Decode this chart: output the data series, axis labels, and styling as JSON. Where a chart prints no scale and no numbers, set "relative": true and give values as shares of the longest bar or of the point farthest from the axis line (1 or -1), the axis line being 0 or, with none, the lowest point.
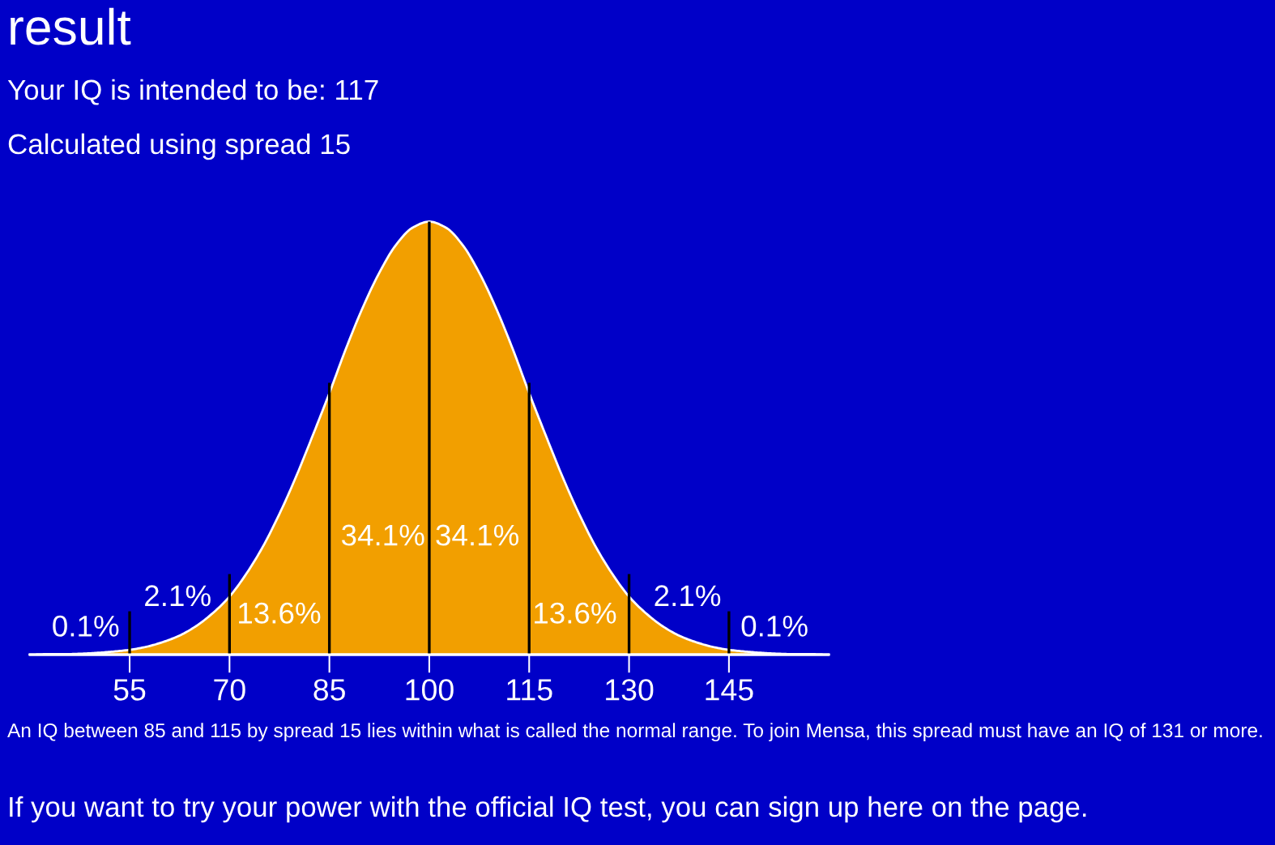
{
  "chart_data": {
    "type": "area",
    "title": "result",
    "subtitle": "Your IQ is intended to be: 117",
    "relative": true,
    "tick_labels": "x",
    "x": [
      40,
      42.5,
      45,
      47.5,
      50,
      52.5,
      55,
      57.5,
      60,
      62.5,
      65,
      67.5,
      70,
      72.5,
      75,
      77.5,
      80,
      82.5,
      85,
      87.5,
      90,
      92.5,
      95,
      97.5,
      100,
      102.5,
      105,
      107.5,
      110,
      112.5,
      115,
      117.5,
      120,
      122.5,
      125,
      127.5,
      130,
      132.5,
      135,
      137.5,
      140,
      142.5,
      145,
      147.5,
      150,
      152.5,
      155,
      157.5,
      160
    ],
    "series": [
      {
        "color": "#f29f00",
        "values": [
          0.0,
          0.001,
          0.001,
          0.002,
          0.004,
          0.007,
          0.011,
          0.018,
          0.029,
          0.044,
          0.066,
          0.096,
          0.134,
          0.186,
          0.249,
          0.325,
          0.411,
          0.506,
          0.604,
          0.707,
          0.801,
          0.882,
          0.946,
          0.986,
          1,
          0.986,
          0.946,
          0.882,
          0.801,
          0.707,
          0.604,
          0.506,
          0.411,
          0.325,
          0.249,
          0.186,
          0.134,
          0.096,
          0.066,
          0.044,
          0.029,
          0.018,
          0.011,
          0.007,
          0.004,
          0.002,
          0.001,
          0.001,
          0.0
        ]
      }
    ],
    "xlim": [
      40,
      160
    ],
    "xticks": [
      55,
      70,
      85,
      100,
      115,
      130,
      145
    ],
    "ref_lines": [
      {
        "axis": "x",
        "value": 55,
        "color": "#000000"
      },
      {
        "axis": "x",
        "value": 70,
        "color": "#000000"
      },
      {
        "axis": "x",
        "value": 85,
        "color": "#000000"
      },
      {
        "axis": "x",
        "value": 100,
        "color": "#000000"
      },
      {
        "axis": "x",
        "value": 115,
        "color": "#000000"
      },
      {
        "axis": "x",
        "value": 130,
        "color": "#000000"
      },
      {
        "axis": "x",
        "value": 145,
        "color": "#000000"
      }
    ],
    "annotations": [
      "Calculated using spread 15",
      "0.1%",
      "2.1%",
      "13.6%",
      "34.1%",
      "34.1%",
      "13.6%",
      "2.1%",
      "0.1%",
      "An IQ between 85 and 115 by spread 15 lies within what is called the normal range. To join Mensa, this spread must have an IQ of 131 or more.",
      "If you want to try your power with the official IQ test, you can sign up here on the page."
    ]
  }
}
